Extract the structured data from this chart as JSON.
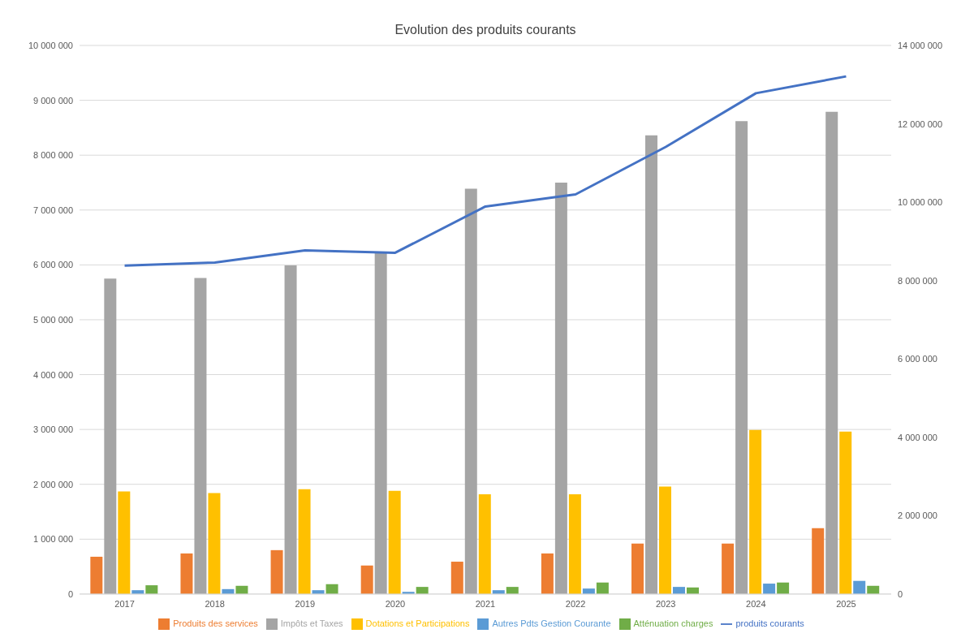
{
  "chart_data": {
    "type": "bar",
    "title": "Evolution des produits courants",
    "categories": [
      "2017",
      "2018",
      "2019",
      "2020",
      "2021",
      "2022",
      "2023",
      "2024",
      "2025"
    ],
    "series": [
      {
        "name": "Produits des services",
        "color": "#ed7d31",
        "values": [
          680000,
          740000,
          800000,
          520000,
          590000,
          740000,
          920000,
          920000,
          1200000
        ]
      },
      {
        "name": "Impôts et Taxes",
        "color": "#a5a5a5",
        "values": [
          5750000,
          5760000,
          5990000,
          6240000,
          7390000,
          7500000,
          8360000,
          8620000,
          8790000
        ]
      },
      {
        "name": "Dotations et Participations",
        "color": "#ffc000",
        "values": [
          1870000,
          1840000,
          1910000,
          1880000,
          1820000,
          1820000,
          1960000,
          2990000,
          2960000
        ]
      },
      {
        "name": "Autres Pdts Gestion Courante",
        "color": "#5b9bd5",
        "values": [
          70000,
          90000,
          70000,
          40000,
          70000,
          100000,
          130000,
          190000,
          240000
        ]
      },
      {
        "name": "Atténuation charges",
        "color": "#70ad47",
        "values": [
          160000,
          150000,
          180000,
          130000,
          130000,
          210000,
          120000,
          210000,
          150000
        ]
      },
      {
        "name": "produits courants",
        "color": "#4472c4",
        "type": "line",
        "axis": "y2",
        "values": [
          8380000,
          8460000,
          8770000,
          8710000,
          9890000,
          10200000,
          11410000,
          12780000,
          13210000
        ]
      }
    ],
    "ylim": [
      0,
      10000000
    ],
    "yticks": [
      0,
      {
        "value": 1000000,
        "label": "1 000 000"
      },
      {
        "value": 2000000,
        "label": "2 000 000"
      },
      {
        "value": 3000000,
        "label": "3 000 000"
      },
      {
        "value": 4000000,
        "label": "4 000 000"
      },
      {
        "value": 5000000,
        "label": "5 000 000"
      },
      {
        "value": 6000000,
        "label": "6 000 000"
      },
      {
        "value": 7000000,
        "label": "7 000 000"
      },
      {
        "value": 8000000,
        "label": "8 000 000"
      },
      {
        "value": 9000000,
        "label": "9 000 000"
      },
      {
        "value": 10000000,
        "label": "10 000 000"
      }
    ],
    "y2lim": [
      0,
      14000000
    ],
    "y2ticks": [
      0,
      {
        "value": 2000000,
        "label": "2 000 000"
      },
      {
        "value": 4000000,
        "label": "4 000 000"
      },
      {
        "value": 6000000,
        "label": "6 000 000"
      },
      {
        "value": 8000000,
        "label": "8 000 000"
      },
      {
        "value": 10000000,
        "label": "10 000 000"
      },
      {
        "value": 12000000,
        "label": "12 000 000"
      },
      {
        "value": 14000000,
        "label": "14 000 000"
      }
    ],
    "grid": "y",
    "legend": "bottom",
    "marker": "none",
    "line_style": "solid"
  }
}
